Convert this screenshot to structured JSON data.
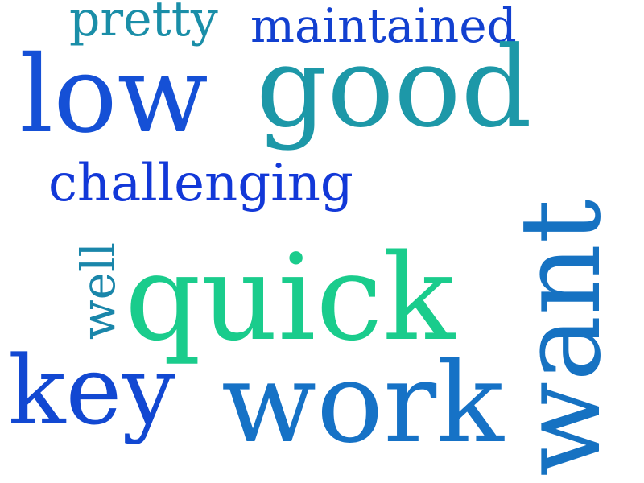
{
  "words": {
    "pretty": {
      "text": "pretty",
      "color": "#1A8EA8"
    },
    "maintained": {
      "text": "maintained",
      "color": "#1240D0"
    },
    "low": {
      "text": "low",
      "color": "#1550D6"
    },
    "good": {
      "text": "good",
      "color": "#1D98A8"
    },
    "challenging": {
      "text": "challenging",
      "color": "#1238D8"
    },
    "well": {
      "text": "well",
      "color": "#1A86AA"
    },
    "quick": {
      "text": "quick",
      "color": "#1ACC8C"
    },
    "want": {
      "text": "want",
      "color": "#1672C2"
    },
    "key": {
      "text": "key",
      "color": "#1248D2"
    },
    "work": {
      "text": "work",
      "color": "#1672C6"
    }
  }
}
